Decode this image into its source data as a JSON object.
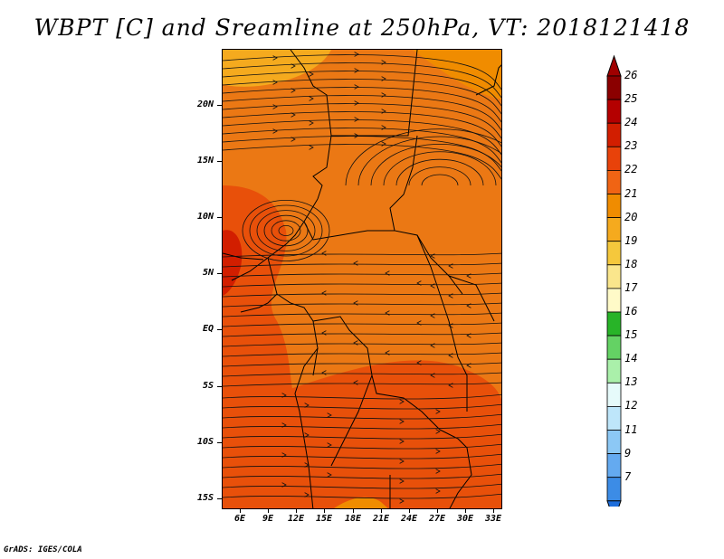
{
  "title": "WBPT [C] and Sreamline at 250hPa, VT: 2018121418",
  "footer": "GrADS: IGES/COLA",
  "lat_labels": [
    "20N",
    "15N",
    "10N",
    "5N",
    "EQ",
    "5S",
    "10S",
    "15S"
  ],
  "lon_labels": [
    "6E",
    "9E",
    "12E",
    "15E",
    "18E",
    "21E",
    "24E",
    "27E",
    "30E",
    "33E"
  ],
  "colorbar": {
    "labels": [
      "26",
      "25",
      "24",
      "23",
      "22",
      "21",
      "20",
      "19",
      "18",
      "17",
      "16",
      "15",
      "14",
      "13",
      "12",
      "11",
      "9",
      "7"
    ],
    "colors": [
      "#8b0000",
      "#b40000",
      "#d21e00",
      "#e8420a",
      "#f06414",
      "#f08c00",
      "#f5aa1e",
      "#f5c83c",
      "#fae68c",
      "#fffac8",
      "#28b428",
      "#64d264",
      "#aaf0aa",
      "#e6fafa",
      "#bee6fa",
      "#8cc8f5",
      "#64aaf0",
      "#3c8ce6",
      "#1e6edc"
    ],
    "cap_top_color": "#a00000",
    "cap_bottom_color": "#1e6edc"
  },
  "fill_colors": {
    "c21": "#f5aa1e",
    "c22": "#f08c00",
    "c23": "#eb7814",
    "c24": "#e8500a",
    "c25": "#d21e00"
  }
}
